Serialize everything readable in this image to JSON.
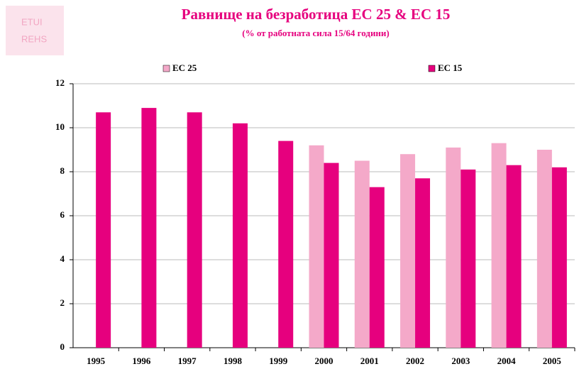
{
  "logo": {
    "line1": "ETUI",
    "line2": "REHS"
  },
  "chart_data": {
    "type": "bar",
    "title": "Равнище на безработица ЕС 25 & ЕС 15",
    "subtitle": "(% от работната сила 15/64 години)",
    "categories": [
      "1995",
      "1996",
      "1997",
      "1998",
      "1999",
      "2000",
      "2001",
      "2002",
      "2003",
      "2004",
      "2005"
    ],
    "series": [
      {
        "name": "ЕС 25",
        "color": "#f4a9c9",
        "values": [
          null,
          null,
          null,
          null,
          null,
          9.2,
          8.5,
          8.8,
          9.1,
          9.3,
          9.0
        ]
      },
      {
        "name": "ЕС 15",
        "color": "#e6007e",
        "values": [
          10.7,
          10.9,
          10.7,
          10.2,
          9.4,
          8.4,
          7.3,
          7.7,
          8.1,
          8.3,
          8.2
        ]
      }
    ],
    "ylim": [
      0,
      12
    ],
    "yticks": [
      0,
      2,
      4,
      6,
      8,
      10,
      12
    ],
    "grid": true
  }
}
